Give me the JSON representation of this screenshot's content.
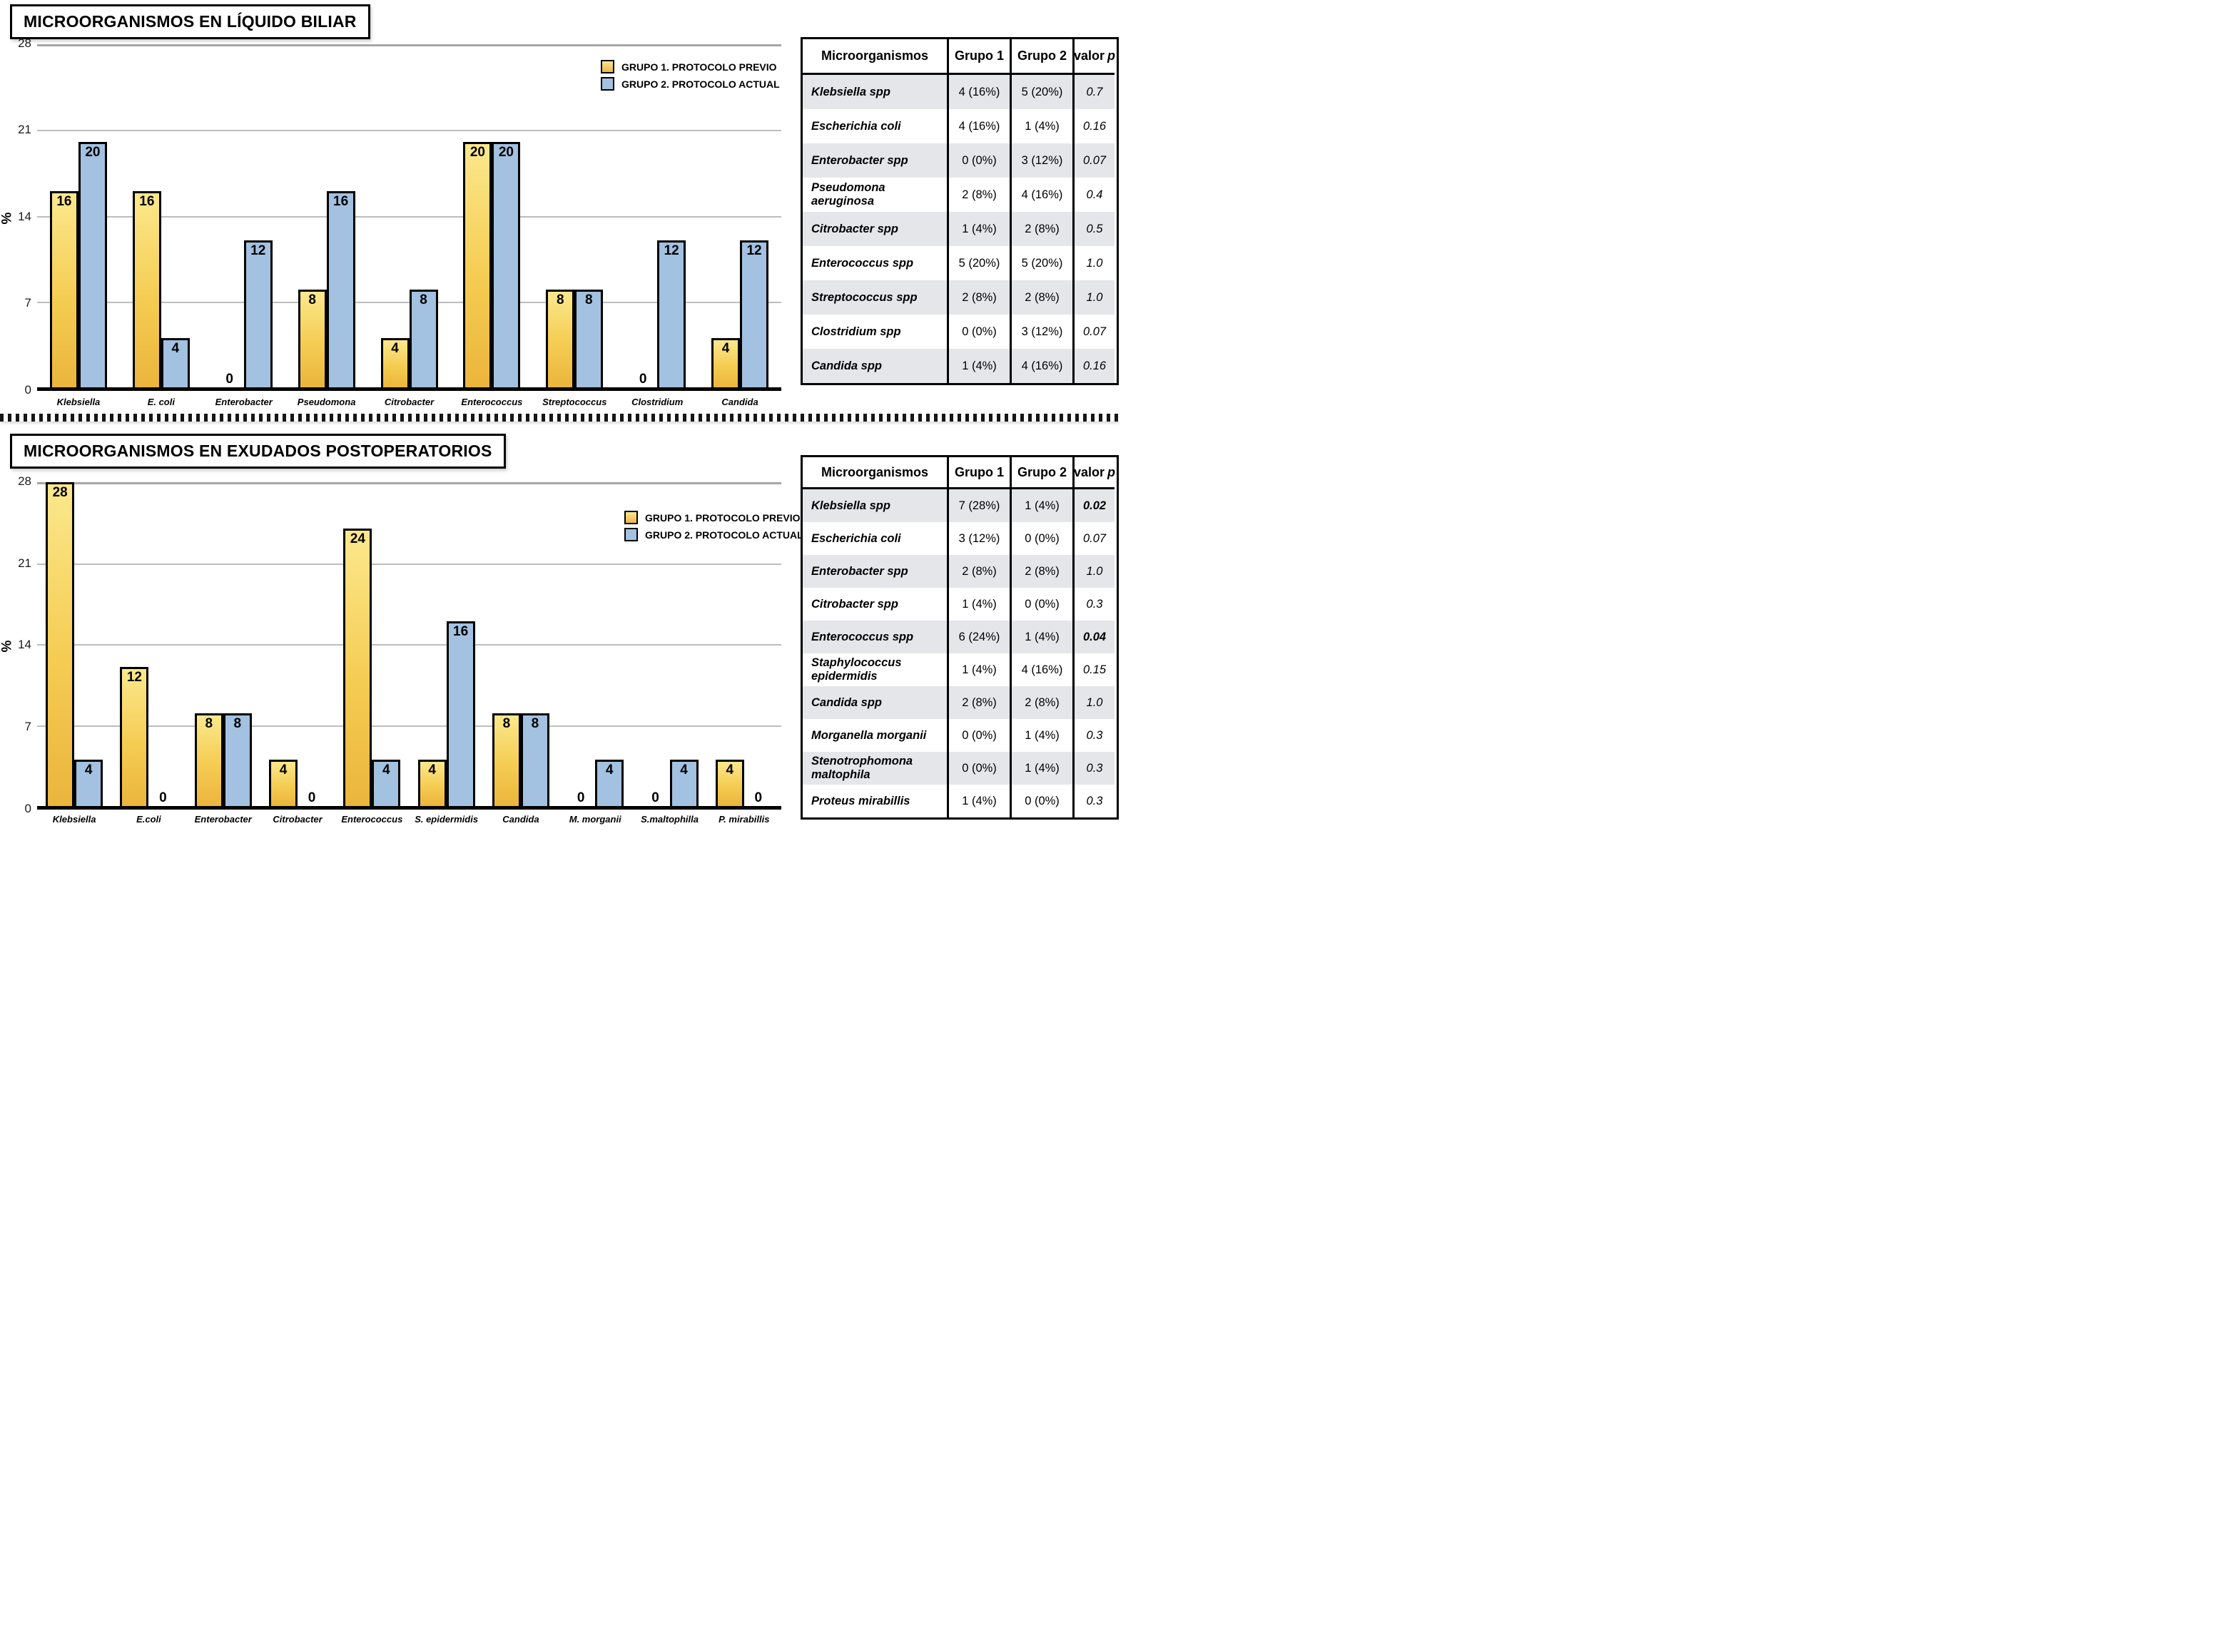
{
  "colors": {
    "group1_fill_top": "#FBE88D",
    "group1_fill_bottom": "#EBB53C",
    "group2_fill": "#A3C1E0",
    "bar_border": "#000000",
    "gridline": "#BDBDBD",
    "table_row_shade": "#E4E6EA"
  },
  "chart_data": [
    {
      "type": "bar",
      "title": "MICROORGANISMOS EN LÍQUIDO BILIAR",
      "ylabel": "%",
      "ylim": [
        0,
        28
      ],
      "yticks": [
        0,
        7,
        14,
        21,
        28
      ],
      "grid": true,
      "legend_position": "top-right",
      "legend": [
        "GRUPO 1. PROTOCOLO PREVIO",
        "GRUPO 2. PROTOCOLO ACTUAL"
      ],
      "categories": [
        "Klebsiella",
        "E. coli",
        "Enterobacter",
        "Pseudomona",
        "Citrobacter",
        "Enterococcus",
        "Streptococcus",
        "Clostridium",
        "Candida"
      ],
      "series": [
        {
          "name": "GRUPO 1. PROTOCOLO PREVIO",
          "values": [
            16,
            16,
            0,
            8,
            4,
            20,
            8,
            0,
            4
          ]
        },
        {
          "name": "GRUPO 2. PROTOCOLO ACTUAL",
          "values": [
            20,
            4,
            12,
            16,
            8,
            20,
            8,
            12,
            12
          ]
        }
      ]
    },
    {
      "type": "bar",
      "title": "MICROORGANISMOS EN EXUDADOS POSTOPERATORIOS",
      "ylabel": "%",
      "ylim": [
        0,
        28
      ],
      "yticks": [
        0,
        7,
        14,
        21,
        28
      ],
      "grid": true,
      "legend_position": "top-right",
      "legend": [
        "GRUPO 1. PROTOCOLO PREVIO",
        "GRUPO 2. PROTOCOLO ACTUAL"
      ],
      "categories": [
        "Klebsiella",
        "E.coli",
        "Enterobacter",
        "Citrobacter",
        "Enterococcus",
        "S. epidermidis",
        "Candida",
        "M. morganii",
        "S.maltophilla",
        "P. mirabillis"
      ],
      "series": [
        {
          "name": "GRUPO 1. PROTOCOLO PREVIO",
          "values": [
            28,
            12,
            8,
            4,
            24,
            4,
            8,
            0,
            0,
            4
          ]
        },
        {
          "name": "GRUPO 2. PROTOCOLO ACTUAL",
          "values": [
            4,
            0,
            8,
            0,
            4,
            16,
            8,
            4,
            4,
            0
          ]
        }
      ]
    }
  ],
  "tables": [
    {
      "headers": [
        "Microorganismos",
        "Grupo 1",
        "Grupo 2",
        "valor p"
      ],
      "valor_p_prefix": "valor",
      "valor_p_italic": "p",
      "rows": [
        {
          "name": "Klebsiella spp",
          "g1": "4 (16%)",
          "g2": "5 (20%)",
          "p": "0.7",
          "strong": false
        },
        {
          "name": "Escherichia coli",
          "g1": "4 (16%)",
          "g2": "1 (4%)",
          "p": "0.16",
          "strong": false
        },
        {
          "name": "Enterobacter spp",
          "g1": "0 (0%)",
          "g2": "3 (12%)",
          "p": "0.07",
          "strong": false
        },
        {
          "name": "Pseudomona aeruginosa",
          "g1": "2 (8%)",
          "g2": "4 (16%)",
          "p": "0.4",
          "strong": false
        },
        {
          "name": "Citrobacter spp",
          "g1": "1 (4%)",
          "g2": "2 (8%)",
          "p": "0.5",
          "strong": false
        },
        {
          "name": "Enterococcus spp",
          "g1": "5 (20%)",
          "g2": "5 (20%)",
          "p": "1.0",
          "strong": false
        },
        {
          "name": "Streptococcus spp",
          "g1": "2 (8%)",
          "g2": "2 (8%)",
          "p": "1.0",
          "strong": false
        },
        {
          "name": "Clostridium spp",
          "g1": "0 (0%)",
          "g2": "3 (12%)",
          "p": "0.07",
          "strong": false
        },
        {
          "name": "Candida spp",
          "g1": "1 (4%)",
          "g2": "4 (16%)",
          "p": "0.16",
          "strong": false
        }
      ]
    },
    {
      "headers": [
        "Microorganismos",
        "Grupo 1",
        "Grupo 2",
        "valor p"
      ],
      "valor_p_prefix": "valor",
      "valor_p_italic": "p",
      "rows": [
        {
          "name": "Klebsiella spp",
          "g1": "7 (28%)",
          "g2": "1 (4%)",
          "p": "0.02",
          "strong": true
        },
        {
          "name": "Escherichia coli",
          "g1": "3 (12%)",
          "g2": "0 (0%)",
          "p": "0.07",
          "strong": false
        },
        {
          "name": "Enterobacter spp",
          "g1": "2 (8%)",
          "g2": "2 (8%)",
          "p": "1.0",
          "strong": false
        },
        {
          "name": "Citrobacter spp",
          "g1": "1 (4%)",
          "g2": "0 (0%)",
          "p": "0.3",
          "strong": false
        },
        {
          "name": "Enterococcus spp",
          "g1": "6 (24%)",
          "g2": "1 (4%)",
          "p": "0.04",
          "strong": true
        },
        {
          "name": "Staphylococcus epidermidis",
          "g1": "1 (4%)",
          "g2": "4 (16%)",
          "p": "0.15",
          "strong": false
        },
        {
          "name": "Candida spp",
          "g1": "2 (8%)",
          "g2": "2 (8%)",
          "p": "1.0",
          "strong": false
        },
        {
          "name": "Morganella morganii",
          "g1": "0 (0%)",
          "g2": "1 (4%)",
          "p": "0.3",
          "strong": false
        },
        {
          "name": "Stenotrophomona maltophila",
          "g1": "0 (0%)",
          "g2": "1 (4%)",
          "p": "0.3",
          "strong": false
        },
        {
          "name": "Proteus mirabillis",
          "g1": "1 (4%)",
          "g2": "0 (0%)",
          "p": "0.3",
          "strong": false
        }
      ]
    }
  ]
}
